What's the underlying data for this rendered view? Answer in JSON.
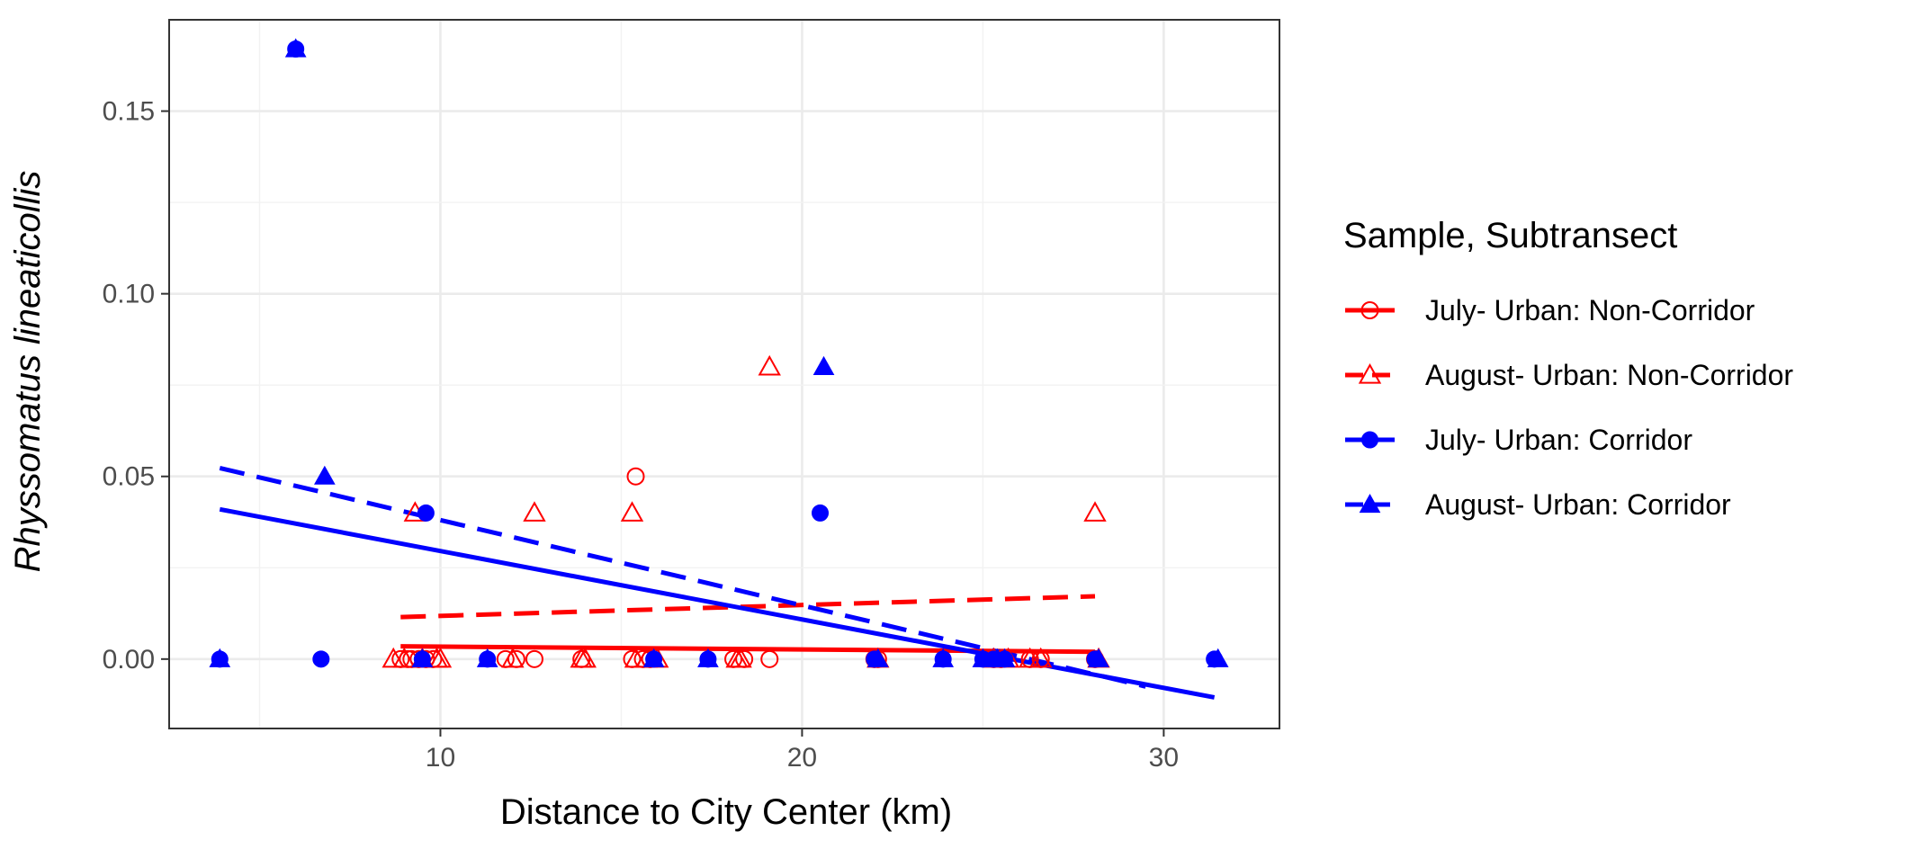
{
  "chart_data": {
    "type": "scatter",
    "xlabel": "Distance to City Center (km)",
    "ylabel": "Rhyssomatus lineaticollis",
    "xlim": [
      2.5,
      33.2
    ],
    "ylim": [
      -0.019,
      0.175
    ],
    "x_ticks": [
      10,
      20,
      30
    ],
    "x_tick_labels": [
      "10",
      "20",
      "30"
    ],
    "y_ticks": [
      0.0,
      0.05,
      0.1,
      0.15
    ],
    "y_tick_labels": [
      "0.00",
      "0.05",
      "0.10",
      "0.15"
    ],
    "grid": true,
    "legend_title": "Sample, Subtransect",
    "legend_position": "right",
    "series": [
      {
        "name": "July- Urban: Non-Corridor",
        "color": "#FF0000",
        "marker": "open-circle",
        "line_style": "solid",
        "points": [
          [
            8.9,
            0
          ],
          [
            9.1,
            0
          ],
          [
            9.2,
            0
          ],
          [
            9.4,
            0
          ],
          [
            9.6,
            0
          ],
          [
            9.8,
            0
          ],
          [
            11.8,
            0
          ],
          [
            12.1,
            0
          ],
          [
            12.6,
            0
          ],
          [
            13.9,
            0
          ],
          [
            15.3,
            0
          ],
          [
            15.4,
            0.05
          ],
          [
            15.6,
            0
          ],
          [
            15.8,
            0
          ],
          [
            18.1,
            0
          ],
          [
            18.4,
            0
          ],
          [
            19.1,
            0
          ],
          [
            22.0,
            0
          ],
          [
            22.1,
            0
          ],
          [
            25.3,
            0
          ],
          [
            25.5,
            0
          ],
          [
            26.3,
            0
          ],
          [
            26.6,
            0
          ],
          [
            28.1,
            0
          ]
        ],
        "fit": [
          [
            8.9,
            0.0035
          ],
          [
            28.1,
            0.002
          ]
        ]
      },
      {
        "name": "August- Urban: Non-Corridor",
        "color": "#FF0000",
        "marker": "open-triangle",
        "line_style": "dashed",
        "points": [
          [
            8.7,
            0
          ],
          [
            9.0,
            0
          ],
          [
            9.3,
            0.04
          ],
          [
            9.5,
            0
          ],
          [
            9.9,
            0
          ],
          [
            10.0,
            0
          ],
          [
            12.0,
            0
          ],
          [
            12.6,
            0.04
          ],
          [
            13.9,
            0
          ],
          [
            14.0,
            0
          ],
          [
            15.3,
            0.04
          ],
          [
            15.4,
            0
          ],
          [
            15.7,
            0
          ],
          [
            16.0,
            0
          ],
          [
            18.2,
            0
          ],
          [
            18.3,
            0
          ],
          [
            19.1,
            0.08
          ],
          [
            22.1,
            0
          ],
          [
            25.3,
            0
          ],
          [
            25.7,
            0
          ],
          [
            26.3,
            0
          ],
          [
            26.6,
            0
          ],
          [
            28.1,
            0.04
          ],
          [
            28.2,
            0
          ]
        ],
        "fit": [
          [
            8.9,
            0.0115
          ],
          [
            28.1,
            0.0172
          ]
        ]
      },
      {
        "name": "July- Urban: Corridor",
        "color": "#0000FF",
        "marker": "filled-circle",
        "line_style": "solid",
        "points": [
          [
            3.9,
            0
          ],
          [
            6.0,
            0.167
          ],
          [
            6.7,
            0
          ],
          [
            9.5,
            0
          ],
          [
            9.6,
            0.04
          ],
          [
            11.3,
            0
          ],
          [
            15.9,
            0
          ],
          [
            17.4,
            0
          ],
          [
            20.5,
            0.04
          ],
          [
            22.0,
            0
          ],
          [
            23.9,
            0
          ],
          [
            25.0,
            0
          ],
          [
            25.3,
            0
          ],
          [
            25.6,
            0
          ],
          [
            28.1,
            0
          ],
          [
            31.4,
            0
          ]
        ],
        "fit": [
          [
            3.9,
            0.041
          ],
          [
            31.4,
            -0.0105
          ]
        ]
      },
      {
        "name": "August- Urban: Corridor",
        "color": "#0000FF",
        "marker": "filled-triangle",
        "line_style": "dashed",
        "points": [
          [
            3.9,
            0
          ],
          [
            6.0,
            0.167
          ],
          [
            6.8,
            0.05
          ],
          [
            9.5,
            0
          ],
          [
            11.3,
            0
          ],
          [
            15.9,
            0
          ],
          [
            17.4,
            0
          ],
          [
            20.6,
            0.08
          ],
          [
            22.1,
            0
          ],
          [
            23.9,
            0
          ],
          [
            25.0,
            0
          ],
          [
            25.4,
            0
          ],
          [
            25.6,
            0
          ],
          [
            28.2,
            0
          ],
          [
            31.5,
            0
          ]
        ],
        "fit": [
          [
            3.9,
            0.0523
          ],
          [
            29.5,
            -0.0075
          ]
        ]
      }
    ]
  }
}
